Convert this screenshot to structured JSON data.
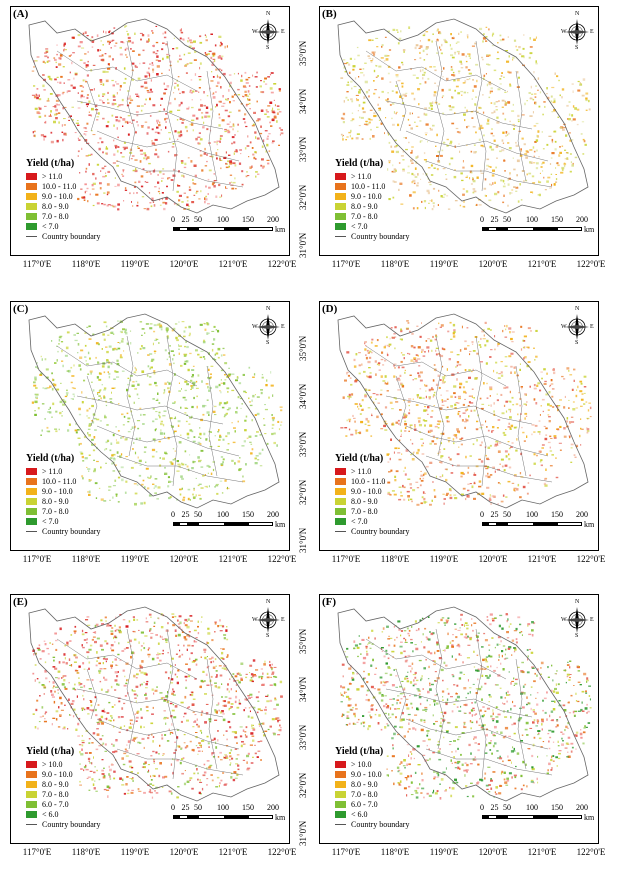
{
  "figure": {
    "longitude_labels": [
      "117°0'E",
      "118°0'E",
      "119°0'E",
      "120°0'E",
      "121°0'E",
      "122°0'E"
    ],
    "latitude_labels": [
      "35°0'N",
      "34°0'N",
      "33°0'N",
      "32°0'N",
      "31°0'N"
    ],
    "compass": {
      "n": "N",
      "s": "S",
      "e": "E",
      "w": "W"
    },
    "scale": {
      "ticks": [
        "0",
        "25",
        "50",
        "100",
        "150",
        "200"
      ],
      "unit": "km"
    },
    "boundary_label": "Country boundary",
    "legend_title": "Yield (t/ha)",
    "colors": [
      "#d7191c",
      "#e8731c",
      "#f2b21a",
      "#c9d334",
      "#7fbf34",
      "#2e9a2e"
    ]
  },
  "panels": [
    {
      "label": "(A)",
      "legend": [
        "> 11.0",
        "10.0 - 11.0",
        "9.0 - 10.0",
        "8.0 - 9.0",
        "7.0 - 8.0",
        "< 7.0"
      ],
      "palette": [
        "#d7191c",
        "#e35a4e",
        "#f28f8f",
        "#e8731c",
        "#c9d334"
      ],
      "density": 0.95
    },
    {
      "label": "(B)",
      "legend": [
        "> 11.0",
        "10.0 - 11.0",
        "9.0 - 10.0",
        "8.0 - 9.0",
        "7.0 - 8.0",
        "< 7.0"
      ],
      "palette": [
        "#e8731c",
        "#f2b21a",
        "#c9d334",
        "#e9c79a",
        "#d9e08c"
      ],
      "density": 0.8
    },
    {
      "label": "(C)",
      "legend": [
        "> 11.0",
        "10.0 - 11.0",
        "9.0 - 10.0",
        "8.0 - 9.0",
        "7.0 - 8.0",
        "< 7.0"
      ],
      "palette": [
        "#7fbf34",
        "#9fcf4a",
        "#c9d334",
        "#a9d98c",
        "#f2b21a"
      ],
      "density": 0.8
    },
    {
      "label": "(D)",
      "legend": [
        "> 11.0",
        "10.0 - 11.0",
        "9.0 - 10.0",
        "8.0 - 9.0",
        "7.0 - 8.0",
        "< 7.0"
      ],
      "palette": [
        "#e35a4e",
        "#e8731c",
        "#f2b21a",
        "#c9d334",
        "#f0a48a"
      ],
      "density": 0.85
    },
    {
      "label": "(E)",
      "legend": [
        "> 10.0",
        "9.0 - 10.0",
        "8.0 - 9.0",
        "7.0 - 8.0",
        "6.0 - 7.0",
        "< 6.0"
      ],
      "palette": [
        "#d7191c",
        "#e35a4e",
        "#f28f8f",
        "#e8731c",
        "#c9d334",
        "#7fbf34"
      ],
      "density": 1.0
    },
    {
      "label": "(F)",
      "legend": [
        "> 10.0",
        "9.0 - 10.0",
        "8.0 - 9.0",
        "7.0 - 8.0",
        "6.0 - 7.0",
        "< 6.0"
      ],
      "palette": [
        "#e35a4e",
        "#f28f8f",
        "#e8731c",
        "#c9d334",
        "#7fbf34",
        "#2e9a2e"
      ],
      "density": 0.95
    }
  ]
}
